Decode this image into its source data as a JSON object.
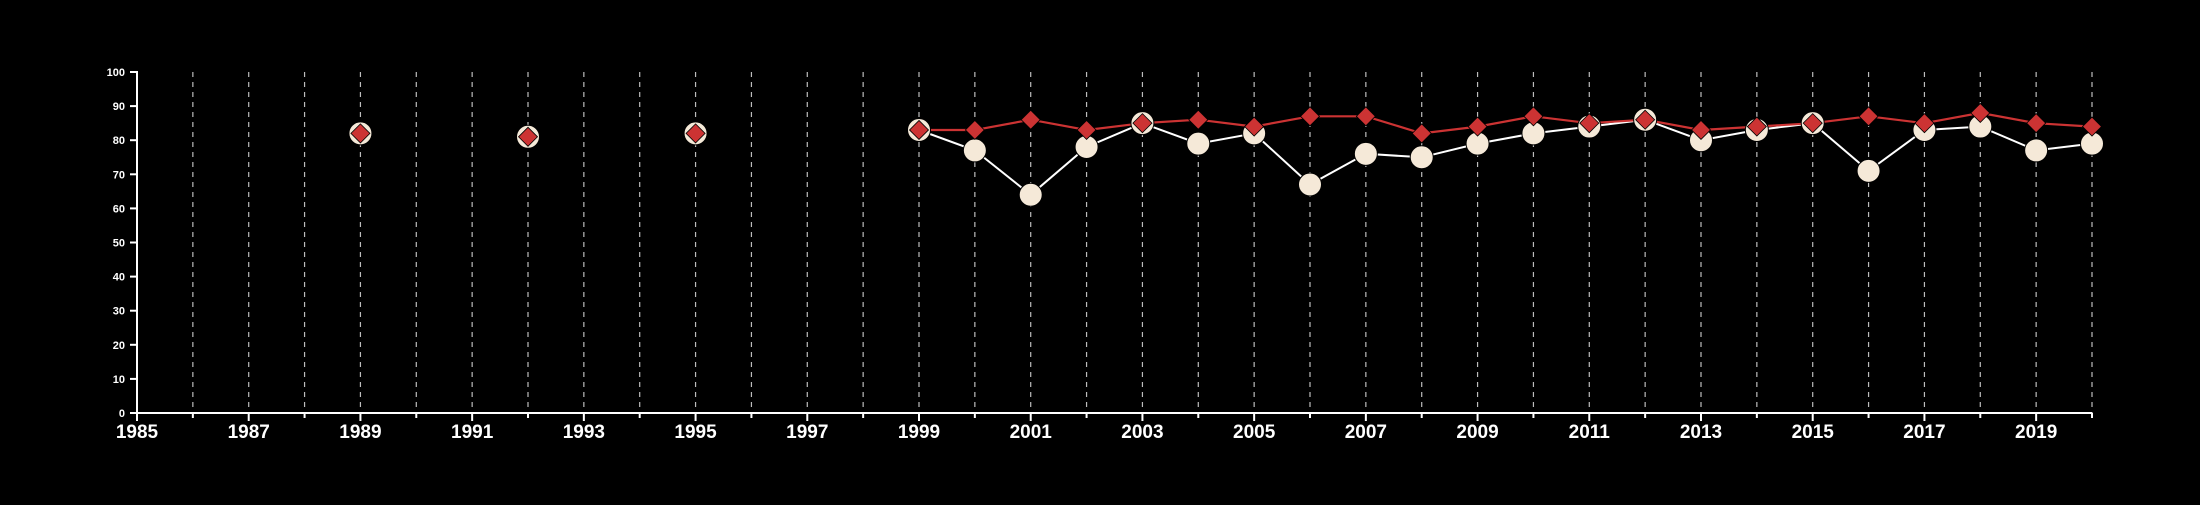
{
  "colors": {
    "background": "#000000",
    "axis": "#ffffff",
    "grid": "#bdbdbd",
    "series_white_fill": "#f5e9d8",
    "series_white_line": "#ffffff",
    "series_red": "#cc3333"
  },
  "chart_data": {
    "type": "line",
    "title": "",
    "xlabel": "",
    "ylabel": "",
    "xlim": [
      1985,
      2020
    ],
    "ylim": [
      0,
      100
    ],
    "x_ticks": [
      1985,
      1987,
      1989,
      1991,
      1993,
      1995,
      1997,
      1999,
      2001,
      2003,
      2005,
      2007,
      2009,
      2011,
      2013,
      2015,
      2017,
      2019
    ],
    "x_tick_labels": [
      "1985",
      "1987",
      "1989",
      "1991",
      "1993",
      "1995",
      "1997",
      "1999",
      "2001",
      "2003",
      "2005",
      "2007",
      "2009",
      "2011",
      "2013",
      "2015",
      "2017",
      "2019"
    ],
    "y_ticks": [
      0,
      10,
      20,
      30,
      40,
      50,
      60,
      70,
      80,
      90,
      100
    ],
    "y_tick_labels": [
      "0",
      "10",
      "20",
      "30",
      "40",
      "50",
      "60",
      "70",
      "80",
      "90",
      "100"
    ],
    "grid": "vertical dashed lines at every year",
    "legend": "none",
    "series": [
      {
        "marker": "circle",
        "color": "#f5e9d8",
        "points": [
          [
            1989,
            82
          ],
          [
            1992,
            81
          ],
          [
            1995,
            82
          ],
          [
            1999,
            83
          ],
          [
            2000,
            77
          ],
          [
            2001,
            64
          ],
          [
            2002,
            78
          ],
          [
            2003,
            85
          ],
          [
            2004,
            79
          ],
          [
            2005,
            82
          ],
          [
            2006,
            67
          ],
          [
            2007,
            76
          ],
          [
            2008,
            75
          ],
          [
            2009,
            79
          ],
          [
            2010,
            82
          ],
          [
            2011,
            84
          ],
          [
            2012,
            86
          ],
          [
            2013,
            80
          ],
          [
            2014,
            83
          ],
          [
            2015,
            85
          ],
          [
            2016,
            71
          ],
          [
            2017,
            83
          ],
          [
            2018,
            84
          ],
          [
            2019,
            77
          ],
          [
            2020,
            79
          ]
        ]
      },
      {
        "marker": "diamond",
        "color": "#cc3333",
        "points": [
          [
            1989,
            82
          ],
          [
            1992,
            81
          ],
          [
            1995,
            82
          ],
          [
            1999,
            83
          ],
          [
            2000,
            83
          ],
          [
            2001,
            86
          ],
          [
            2002,
            83
          ],
          [
            2003,
            85
          ],
          [
            2004,
            86
          ],
          [
            2005,
            84
          ],
          [
            2006,
            87
          ],
          [
            2007,
            87
          ],
          [
            2008,
            82
          ],
          [
            2009,
            84
          ],
          [
            2010,
            87
          ],
          [
            2011,
            85
          ],
          [
            2012,
            86
          ],
          [
            2013,
            83
          ],
          [
            2014,
            84
          ],
          [
            2015,
            85
          ],
          [
            2016,
            87
          ],
          [
            2017,
            85
          ],
          [
            2018,
            88
          ],
          [
            2019,
            85
          ],
          [
            2020,
            84
          ]
        ]
      }
    ]
  }
}
